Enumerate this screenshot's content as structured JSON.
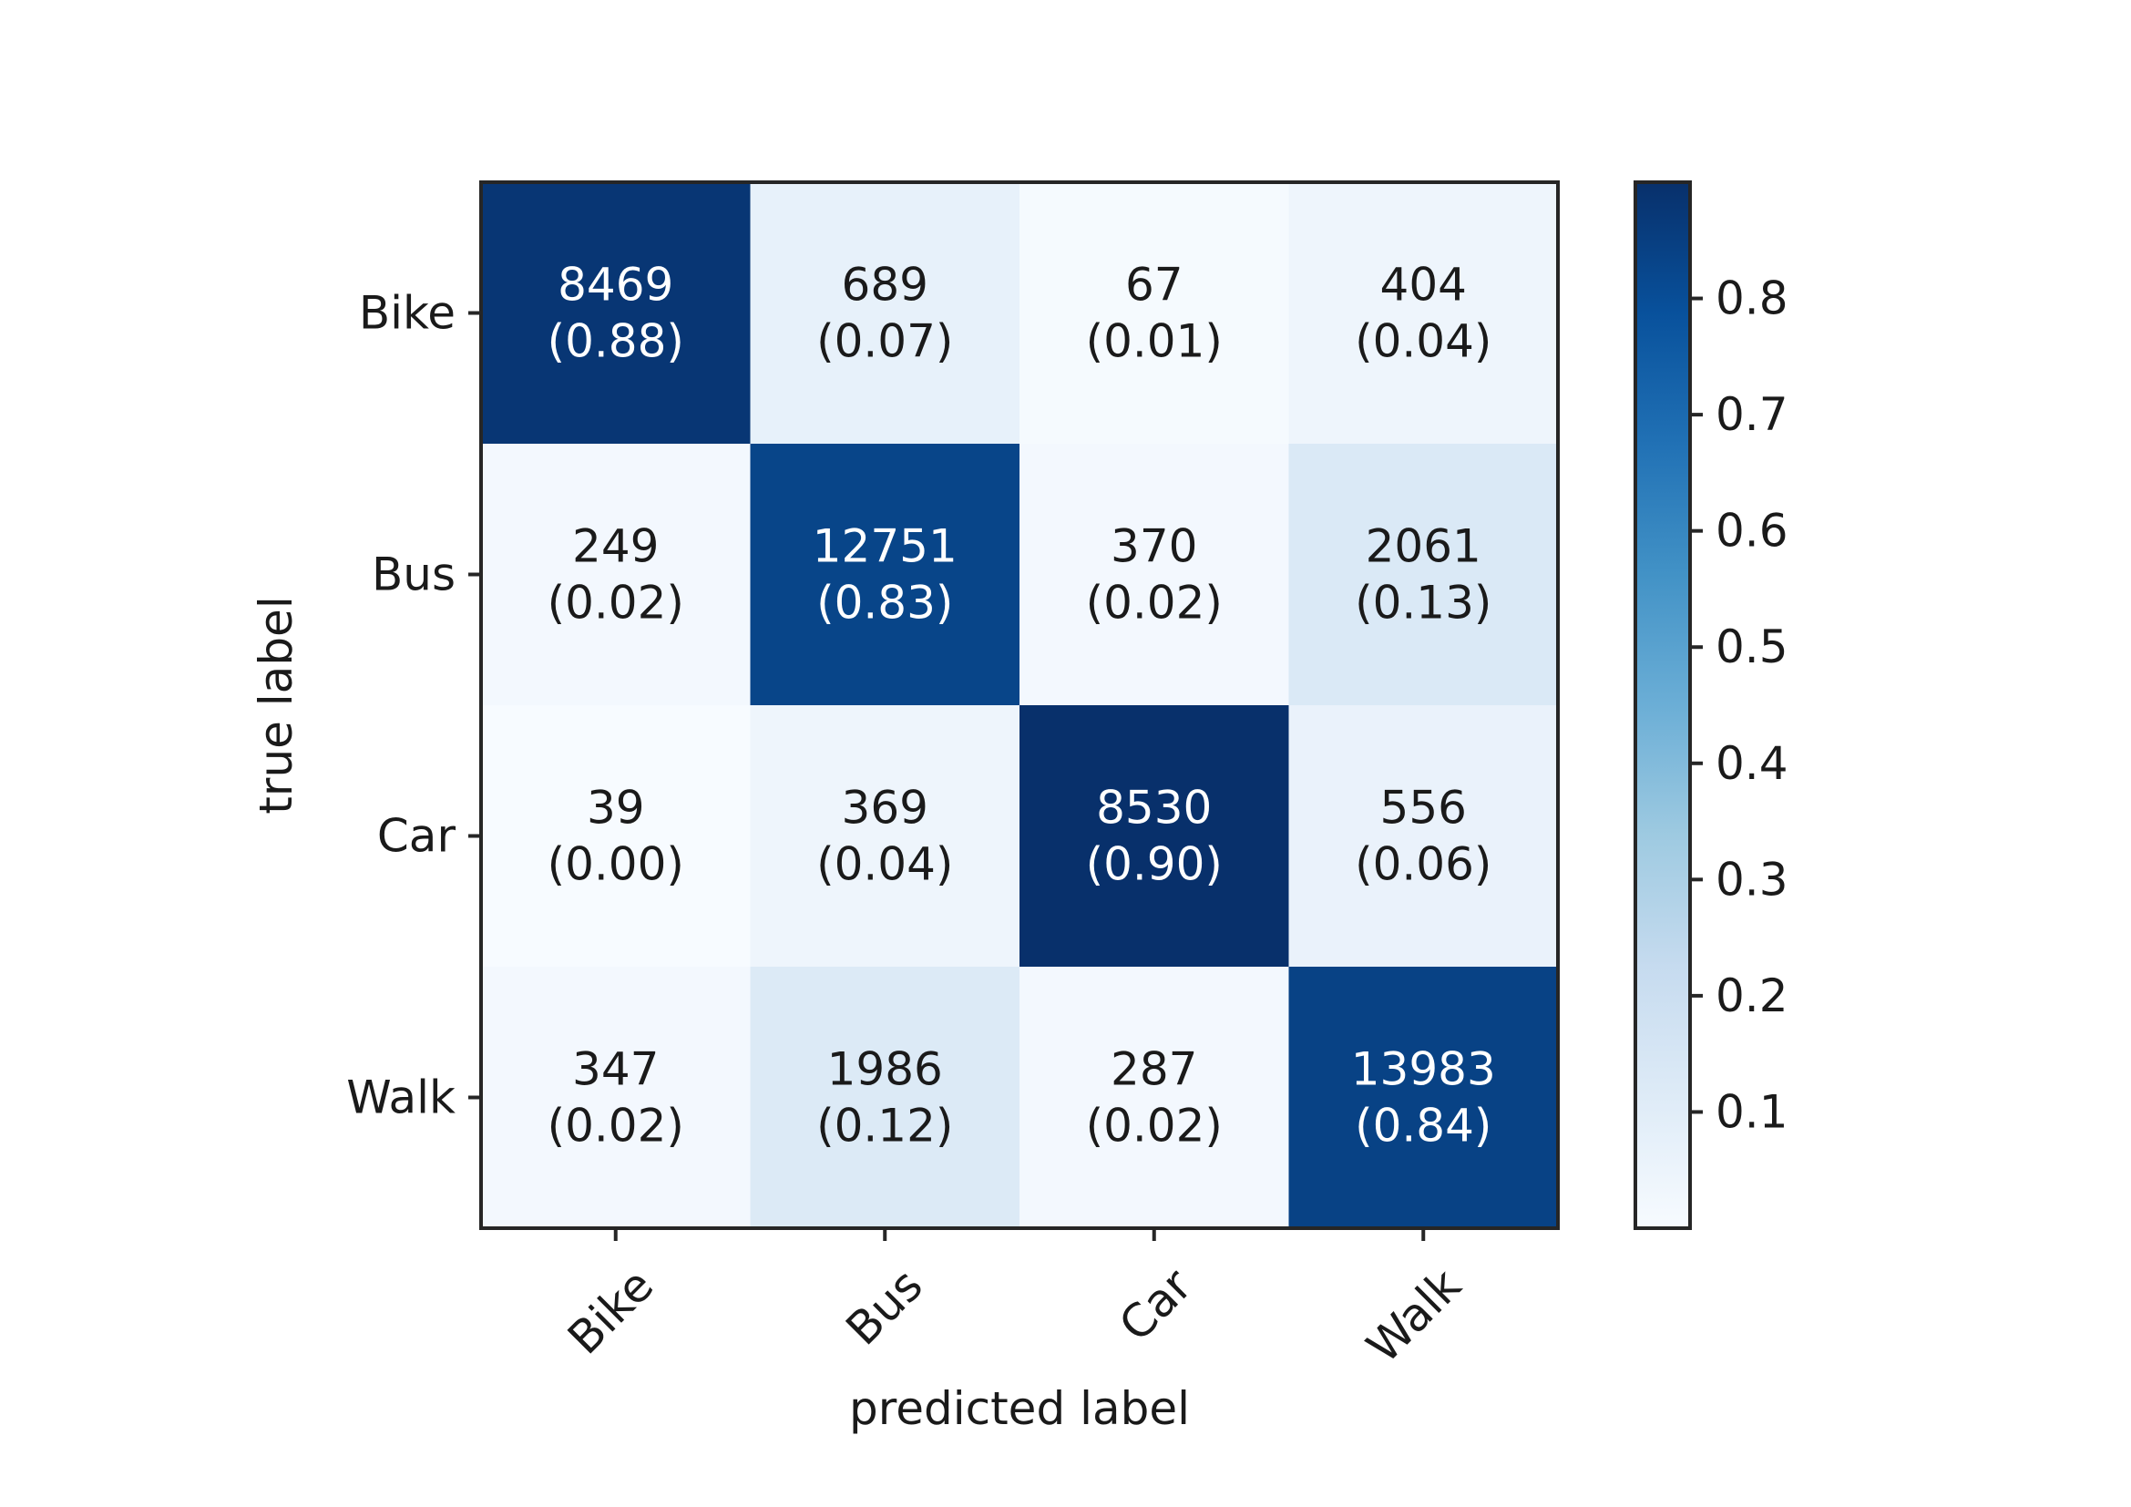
{
  "chart_data": {
    "type": "heatmap",
    "title": "",
    "xlabel": "predicted label",
    "ylabel": "true label",
    "x_categories": [
      "Bike",
      "Bus",
      "Car",
      "Walk"
    ],
    "y_categories": [
      "Bike",
      "Bus",
      "Car",
      "Walk"
    ],
    "counts": [
      [
        8469,
        689,
        67,
        404
      ],
      [
        249,
        12751,
        370,
        2061
      ],
      [
        39,
        369,
        8530,
        556
      ],
      [
        347,
        1986,
        287,
        13983
      ]
    ],
    "normalized": [
      [
        0.88,
        0.07,
        0.01,
        0.04
      ],
      [
        0.02,
        0.83,
        0.02,
        0.13
      ],
      [
        0.0,
        0.04,
        0.9,
        0.06
      ],
      [
        0.02,
        0.12,
        0.02,
        0.84
      ]
    ],
    "normalized_labels": [
      [
        "(0.88)",
        "(0.07)",
        "(0.01)",
        "(0.04)"
      ],
      [
        "(0.02)",
        "(0.83)",
        "(0.02)",
        "(0.13)"
      ],
      [
        "(0.00)",
        "(0.04)",
        "(0.90)",
        "(0.06)"
      ],
      [
        "(0.02)",
        "(0.12)",
        "(0.02)",
        "(0.84)"
      ]
    ],
    "colormap": "Blues",
    "colorbar": {
      "range": [
        0.0,
        0.9
      ],
      "ticks": [
        0.1,
        0.2,
        0.3,
        0.4,
        0.5,
        0.6,
        0.7,
        0.8
      ],
      "tick_labels": [
        "0.1",
        "0.2",
        "0.3",
        "0.4",
        "0.5",
        "0.6",
        "0.7",
        "0.8"
      ]
    },
    "x_tick_rotation_deg": 45,
    "grid": false
  }
}
